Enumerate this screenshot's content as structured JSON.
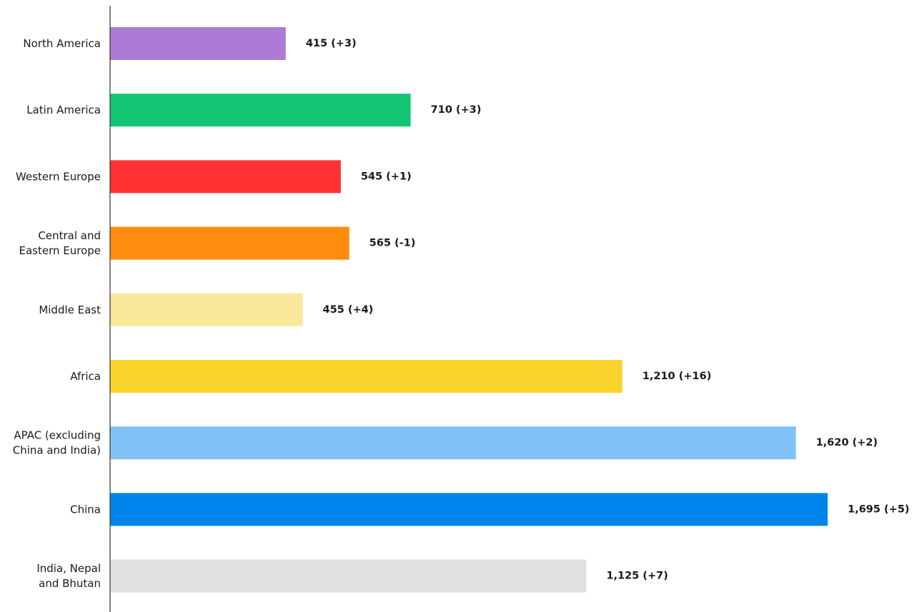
{
  "chart_data": {
    "type": "bar",
    "orientation": "horizontal",
    "categories": [
      "North America",
      "Latin America",
      "Western Europe",
      "Central and Eastern Europe",
      "Middle East",
      "Africa",
      "APAC (excluding China and India)",
      "China",
      "India, Nepal and Bhutan"
    ],
    "category_lines": [
      [
        "North America"
      ],
      [
        "Latin America"
      ],
      [
        "Western Europe"
      ],
      [
        "Central and",
        "Eastern Europe"
      ],
      [
        "Middle East"
      ],
      [
        "Africa"
      ],
      [
        "APAC (excluding",
        "China and India)"
      ],
      [
        "China"
      ],
      [
        "India, Nepal",
        "and Bhutan"
      ]
    ],
    "values": [
      415,
      710,
      545,
      565,
      455,
      1210,
      1620,
      1695,
      1125
    ],
    "data_labels": [
      "415 (+3)",
      "710 (+3)",
      "545 (+1)",
      "565 (-1)",
      "455 (+4)",
      "1,210 (+16)",
      "1,620 (+2)",
      "1,695 (+5)",
      "1,125 (+7)"
    ],
    "colors": [
      "#ad7bd6",
      "#13c573",
      "#ff3333",
      "#ff8c0d",
      "#f9e899",
      "#f8d42b",
      "#80c1f6",
      "#0084ec",
      "#e0e0e0"
    ],
    "xlim": [
      0,
      1695
    ],
    "grid": false,
    "legend": "none",
    "axis_color": "#333333"
  }
}
